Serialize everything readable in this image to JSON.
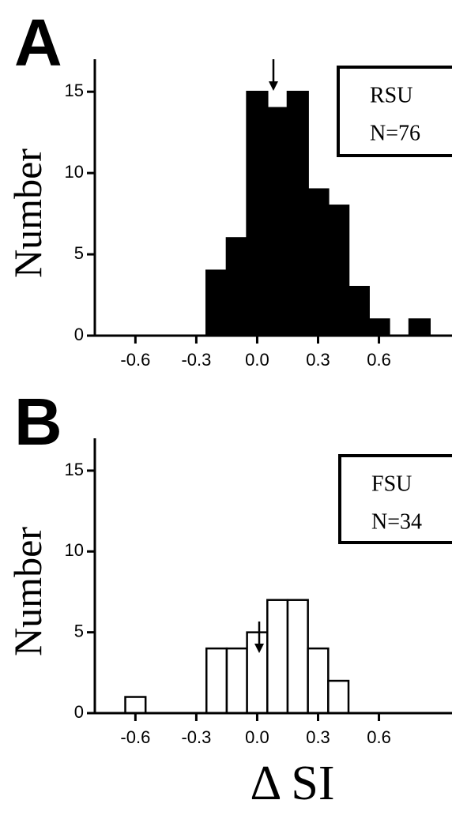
{
  "chart_data": [
    {
      "type": "histogram",
      "panel_label": "A",
      "ylabel": "Number",
      "bins": [
        -0.25,
        -0.15,
        -0.05,
        0.05,
        0.15,
        0.25,
        0.35,
        0.45,
        0.55,
        0.65,
        0.75,
        0.85
      ],
      "values": [
        4,
        6,
        15,
        14,
        15,
        9,
        8,
        3,
        1,
        0,
        1
      ],
      "color": "#000000",
      "edgecolor": "#000000",
      "xlim": [
        -0.8,
        0.96
      ],
      "ylim": [
        0,
        17
      ],
      "xticks": [
        -0.6,
        -0.3,
        {
          "value": 0,
          "label": "0.0"
        },
        0.3,
        0.6
      ],
      "yticks": [
        0,
        5,
        10,
        15
      ],
      "arrow_x": 0.08,
      "legend": {
        "label": "RSU",
        "count": "N=76"
      }
    },
    {
      "type": "histogram",
      "panel_label": "B",
      "ylabel": "Number",
      "xlabel": "Δ SI",
      "bins": [
        -0.65,
        -0.55,
        -0.45,
        -0.35,
        -0.25,
        -0.15,
        -0.05,
        0.05,
        0.15,
        0.25,
        0.35,
        0.45
      ],
      "values": [
        1,
        0,
        0,
        0,
        4,
        4,
        5,
        7,
        7,
        4,
        2
      ],
      "color": "#ffffff",
      "edgecolor": "#000000",
      "xlim": [
        -0.8,
        0.96
      ],
      "ylim": [
        0,
        17
      ],
      "xticks": [
        -0.6,
        -0.3,
        {
          "value": 0,
          "label": "0.0"
        },
        0.3,
        0.6
      ],
      "yticks": [
        0,
        5,
        10,
        15
      ],
      "arrow_x": 0.01,
      "legend": {
        "label": "FSU",
        "count": "N=34"
      }
    }
  ]
}
